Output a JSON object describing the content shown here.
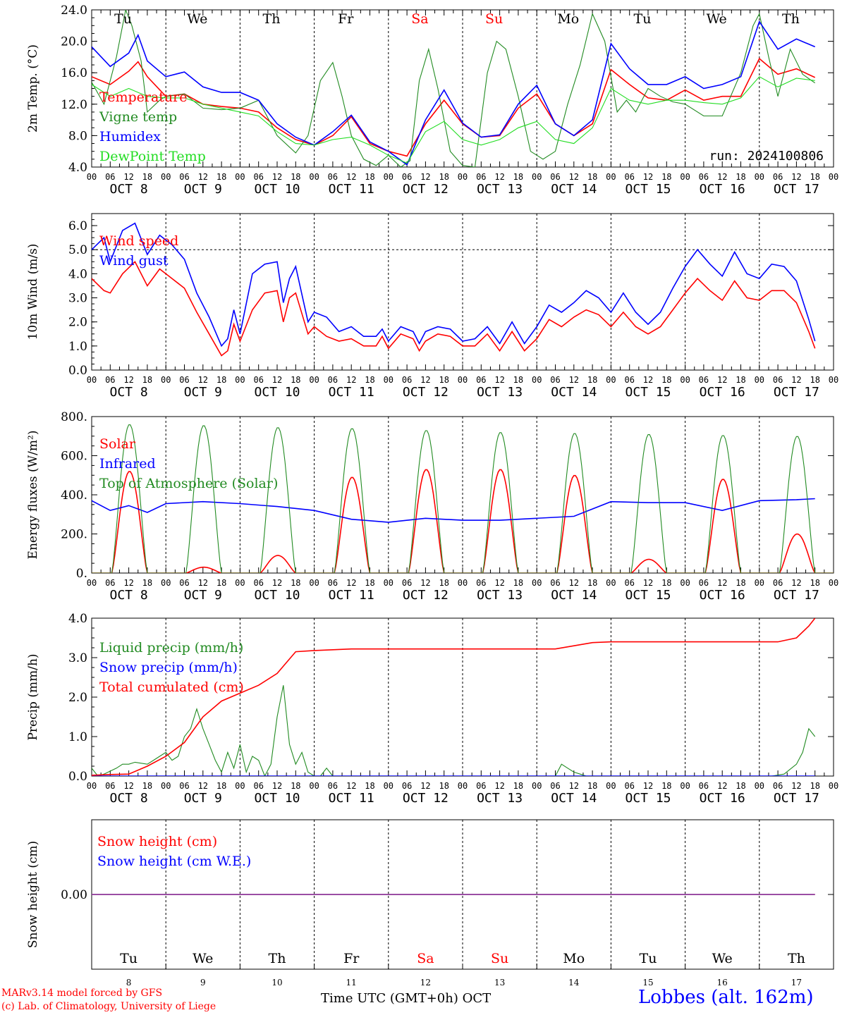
{
  "meta": {
    "run_label": "run: 2024100806",
    "credit_line1": "MARv3.14 model forced by GFS",
    "credit_line2": "(c) Lab. of Climatology, University of Liege",
    "location": "Lobbes (alt. 162m)",
    "time_axis_label": "Time UTC (GMT+0h) OCT"
  },
  "colors": {
    "red": "#ff0000",
    "green": "#228b22",
    "blue": "#0000ff",
    "lime": "#22dd22",
    "purple": "#7a3fb0",
    "axis": "#000000"
  },
  "days": {
    "weekday": [
      "Tu",
      "We",
      "Th",
      "Fr",
      "Sa",
      "Su",
      "Mo",
      "Tu",
      "We",
      "Th"
    ],
    "weekend": [
      false,
      false,
      false,
      false,
      true,
      true,
      false,
      false,
      false,
      false
    ],
    "date": [
      "OCT 8",
      "OCT 9",
      "OCT 10",
      "OCT 11",
      "OCT 12",
      "OCT 13",
      "OCT 14",
      "OCT 15",
      "OCT 16",
      "OCT 17"
    ],
    "daynum": [
      "8",
      "9",
      "10",
      "11",
      "12",
      "13",
      "14",
      "15",
      "16",
      "17"
    ],
    "hours": [
      "00",
      "06",
      "12",
      "18"
    ],
    "end_hour": "00"
  },
  "chart_data": [
    {
      "id": "temperature",
      "type": "line",
      "ylabel": "2m Temp. (°C)",
      "ylim": [
        4,
        24
      ],
      "yticks": [
        "4.0",
        "8.0",
        "12.0",
        "16.0",
        "20.0",
        "24.0"
      ],
      "x_unit": "hours since OCT 8 00 UTC",
      "series": [
        {
          "name": "Temperature",
          "color": "#ff0000",
          "x": [
            0,
            6,
            12,
            15,
            18,
            24,
            30,
            36,
            42,
            48,
            54,
            60,
            66,
            72,
            78,
            84,
            90,
            96,
            102,
            108,
            114,
            120,
            126,
            132,
            138,
            144,
            150,
            156,
            162,
            168,
            174,
            180,
            186,
            192,
            198,
            204,
            210,
            216,
            222,
            228,
            234
          ],
          "y": [
            15.5,
            14.5,
            16.2,
            17.4,
            15.5,
            13.0,
            13.3,
            12.0,
            11.7,
            11.5,
            11.0,
            9.0,
            7.5,
            6.8,
            8.0,
            10.4,
            7.0,
            6.0,
            5.4,
            9.5,
            12.5,
            9.5,
            7.8,
            8.0,
            11.5,
            13.3,
            9.5,
            8.0,
            9.5,
            16.4,
            14.5,
            12.8,
            12.5,
            13.8,
            12.5,
            13.0,
            13.0,
            17.8,
            15.8,
            16.5,
            15.4
          ]
        },
        {
          "name": "Vigne temp",
          "color": "#228b22",
          "x": [
            0,
            4,
            8,
            11,
            13,
            16,
            18,
            22,
            24,
            30,
            36,
            42,
            48,
            54,
            60,
            66,
            70,
            74,
            78,
            81,
            84,
            88,
            92,
            96,
            100,
            103,
            106,
            109,
            112,
            116,
            120,
            124,
            128,
            131,
            134,
            138,
            142,
            146,
            150,
            154,
            158,
            162,
            166,
            170,
            173,
            176,
            180,
            184,
            188,
            192,
            198,
            204,
            210,
            214,
            216,
            219,
            222,
            226,
            230,
            234
          ],
          "y": [
            14.8,
            12.0,
            18.0,
            24.0,
            22.0,
            17.5,
            11.0,
            12.5,
            13.0,
            13.3,
            11.5,
            11.3,
            11.5,
            12.5,
            8.0,
            5.8,
            8.0,
            15.0,
            17.3,
            13.0,
            8.0,
            5.0,
            4.2,
            5.5,
            4.0,
            4.8,
            15.0,
            19.0,
            14.0,
            6.0,
            4.2,
            4.0,
            16.0,
            20.0,
            19.0,
            13.0,
            6.0,
            5.0,
            6.0,
            12.0,
            17.0,
            23.5,
            20.0,
            11.0,
            12.5,
            11.0,
            14.0,
            13.0,
            12.3,
            12.0,
            10.5,
            10.5,
            16.0,
            22.0,
            23.5,
            18.0,
            13.0,
            19.0,
            15.8,
            14.7
          ]
        },
        {
          "name": "Humidex",
          "color": "#0000ff",
          "x": [
            0,
            6,
            12,
            15,
            18,
            24,
            30,
            36,
            42,
            48,
            54,
            60,
            66,
            72,
            78,
            84,
            90,
            96,
            102,
            108,
            114,
            120,
            126,
            132,
            138,
            144,
            150,
            156,
            162,
            168,
            174,
            180,
            186,
            192,
            198,
            204,
            210,
            216,
            222,
            228,
            234
          ],
          "y": [
            19.3,
            16.8,
            18.5,
            20.8,
            17.5,
            15.5,
            16.1,
            14.2,
            13.5,
            13.5,
            12.5,
            9.5,
            7.8,
            6.8,
            8.5,
            10.6,
            7.2,
            6.0,
            4.3,
            10.0,
            13.8,
            9.6,
            7.8,
            8.1,
            12.0,
            14.4,
            9.5,
            8.0,
            10.0,
            19.7,
            16.5,
            14.5,
            14.5,
            15.5,
            14.0,
            14.5,
            15.5,
            22.5,
            19.0,
            20.3,
            19.3
          ]
        },
        {
          "name": "DewPoint Temp",
          "color": "#22dd22",
          "x": [
            0,
            6,
            12,
            18,
            24,
            30,
            36,
            42,
            48,
            54,
            60,
            66,
            72,
            78,
            84,
            90,
            96,
            102,
            108,
            114,
            120,
            126,
            132,
            138,
            144,
            150,
            156,
            162,
            168,
            174,
            180,
            186,
            192,
            198,
            204,
            210,
            216,
            222,
            228,
            234
          ],
          "y": [
            14.5,
            13.0,
            14.0,
            13.0,
            12.8,
            12.8,
            12.0,
            11.5,
            11.0,
            10.5,
            8.5,
            7.0,
            6.8,
            7.5,
            7.8,
            6.8,
            5.5,
            4.5,
            8.5,
            9.8,
            7.5,
            6.8,
            7.5,
            9.0,
            9.8,
            7.5,
            7.0,
            9.0,
            14.0,
            12.5,
            12.0,
            12.5,
            12.5,
            12.2,
            12.0,
            12.8,
            15.5,
            14.2,
            15.3,
            15.0
          ]
        }
      ]
    },
    {
      "id": "wind",
      "type": "line",
      "ylabel": "10m Wind (m/s)",
      "ylim": [
        0,
        6.5
      ],
      "yticks": [
        "0.0",
        "1.0",
        "2.0",
        "3.0",
        "4.0",
        "5.0",
        "6.0"
      ],
      "ref_line": 5.0,
      "series": [
        {
          "name": "Wind speed",
          "color": "#ff0000",
          "x": [
            0,
            4,
            6,
            10,
            14,
            18,
            22,
            26,
            30,
            34,
            38,
            42,
            44,
            46,
            48,
            52,
            56,
            60,
            62,
            64,
            66,
            70,
            72,
            76,
            80,
            84,
            88,
            92,
            94,
            96,
            100,
            104,
            106,
            108,
            112,
            116,
            120,
            124,
            128,
            132,
            136,
            140,
            144,
            148,
            152,
            156,
            160,
            164,
            168,
            172,
            176,
            180,
            184,
            188,
            192,
            196,
            200,
            204,
            208,
            212,
            216,
            220,
            224,
            228,
            232,
            234
          ],
          "y": [
            3.8,
            3.3,
            3.2,
            4.0,
            4.5,
            3.5,
            4.2,
            3.8,
            3.4,
            2.4,
            1.5,
            0.6,
            0.8,
            1.9,
            1.2,
            2.5,
            3.2,
            3.3,
            2.0,
            3.0,
            3.2,
            1.5,
            1.8,
            1.4,
            1.2,
            1.3,
            1.0,
            1.0,
            1.4,
            0.9,
            1.5,
            1.3,
            0.8,
            1.2,
            1.5,
            1.4,
            1.0,
            1.0,
            1.5,
            0.8,
            1.6,
            0.8,
            1.3,
            2.1,
            1.8,
            2.2,
            2.5,
            2.3,
            1.8,
            2.4,
            1.8,
            1.5,
            1.8,
            2.5,
            3.2,
            3.8,
            3.3,
            2.9,
            3.7,
            3.0,
            2.9,
            3.3,
            3.3,
            2.8,
            1.6,
            0.9
          ]
        },
        {
          "name": "Wind gust",
          "color": "#0000ff",
          "x": [
            0,
            4,
            6,
            10,
            14,
            18,
            22,
            26,
            30,
            34,
            38,
            42,
            44,
            46,
            48,
            52,
            56,
            60,
            62,
            64,
            66,
            70,
            72,
            76,
            80,
            84,
            88,
            92,
            94,
            96,
            100,
            104,
            106,
            108,
            112,
            116,
            120,
            124,
            128,
            132,
            136,
            140,
            144,
            148,
            152,
            156,
            160,
            164,
            168,
            172,
            176,
            180,
            184,
            188,
            192,
            196,
            200,
            204,
            208,
            212,
            216,
            220,
            224,
            228,
            232,
            234
          ],
          "y": [
            5.0,
            5.5,
            4.5,
            5.8,
            6.1,
            4.8,
            5.6,
            5.2,
            4.6,
            3.2,
            2.2,
            1.0,
            1.3,
            2.5,
            1.5,
            4.0,
            4.4,
            4.5,
            2.8,
            3.8,
            4.3,
            2.0,
            2.4,
            2.2,
            1.6,
            1.8,
            1.4,
            1.4,
            1.7,
            1.2,
            1.8,
            1.6,
            1.1,
            1.6,
            1.8,
            1.7,
            1.2,
            1.3,
            1.8,
            1.1,
            2.0,
            1.1,
            1.8,
            2.7,
            2.4,
            2.8,
            3.3,
            3.0,
            2.4,
            3.2,
            2.4,
            1.9,
            2.4,
            3.4,
            4.3,
            5.0,
            4.4,
            3.9,
            4.9,
            4.0,
            3.8,
            4.4,
            4.3,
            3.7,
            2.1,
            1.2
          ]
        }
      ]
    },
    {
      "id": "energy",
      "type": "line",
      "ylabel": "Energy fluxes (W/m²)",
      "ylim": [
        0,
        800
      ],
      "yticks": [
        "0.",
        "200.",
        "400.",
        "600.",
        "800."
      ],
      "series": [
        {
          "name": "Solar",
          "color": "#ff0000",
          "peaks": [
            520,
            30,
            90,
            490,
            530,
            530,
            500,
            70,
            480,
            200
          ]
        },
        {
          "name": "Infrared",
          "color": "#0000ff",
          "x": [
            0,
            6,
            12,
            18,
            24,
            36,
            48,
            60,
            72,
            84,
            96,
            108,
            120,
            132,
            144,
            156,
            168,
            180,
            192,
            204,
            216,
            228,
            234
          ],
          "y": [
            370,
            320,
            345,
            310,
            355,
            365,
            355,
            340,
            320,
            275,
            260,
            280,
            270,
            270,
            280,
            290,
            365,
            360,
            360,
            320,
            370,
            375,
            380
          ]
        },
        {
          "name": "Top of Atmosphere (Solar)",
          "color": "#228b22",
          "peaks": [
            760,
            755,
            745,
            740,
            730,
            720,
            715,
            710,
            705,
            700
          ]
        }
      ]
    },
    {
      "id": "precip",
      "type": "line",
      "ylabel": "Precip (mm/h)",
      "ylim": [
        0,
        4
      ],
      "yticks": [
        "0.0",
        "1.0",
        "2.0",
        "3.0",
        "4.0"
      ],
      "series": [
        {
          "name": "Liquid precip (mm/h)",
          "color": "#228b22",
          "x": [
            0,
            2,
            4,
            8,
            10,
            12,
            14,
            18,
            20,
            22,
            24,
            26,
            28,
            30,
            32,
            34,
            36,
            38,
            40,
            42,
            44,
            46,
            48,
            50,
            52,
            54,
            56,
            58,
            60,
            62,
            64,
            66,
            68,
            70,
            72,
            74,
            76,
            78,
            80,
            84,
            88,
            150,
            152,
            154,
            156,
            158,
            160,
            162,
            220,
            224,
            228,
            230,
            232,
            234
          ],
          "y": [
            0.2,
            0.0,
            0.05,
            0.2,
            0.3,
            0.3,
            0.35,
            0.3,
            0.4,
            0.5,
            0.6,
            0.4,
            0.5,
            1.0,
            1.2,
            1.7,
            1.2,
            0.8,
            0.4,
            0.1,
            0.6,
            0.2,
            0.8,
            0.1,
            0.5,
            0.4,
            0.0,
            0.3,
            1.5,
            2.3,
            0.8,
            0.3,
            0.6,
            0.1,
            0.0,
            0.0,
            0.2,
            0.0,
            0.0,
            0.0,
            0.0,
            0.0,
            0.3,
            0.2,
            0.1,
            0.05,
            0.0,
            0.0,
            0.0,
            0.05,
            0.3,
            0.6,
            1.2,
            1.0
          ]
        },
        {
          "name": "Snow precip (mm/h)",
          "color": "#0000ff",
          "x": [
            0,
            234
          ],
          "y": [
            0,
            0
          ]
        },
        {
          "name": "Total cumulated (cm)",
          "color": "#ff0000",
          "x": [
            0,
            6,
            12,
            18,
            24,
            30,
            36,
            42,
            48,
            54,
            60,
            66,
            72,
            78,
            84,
            90,
            150,
            156,
            162,
            168,
            174,
            210,
            222,
            228,
            232,
            234
          ],
          "y": [
            0.02,
            0.04,
            0.05,
            0.25,
            0.5,
            0.85,
            1.5,
            1.9,
            2.1,
            2.3,
            2.6,
            3.15,
            3.18,
            3.2,
            3.22,
            3.22,
            3.22,
            3.3,
            3.38,
            3.4,
            3.4,
            3.4,
            3.4,
            3.5,
            3.8,
            4.0
          ]
        }
      ]
    },
    {
      "id": "snow",
      "type": "line",
      "ylabel": "Snow height (cm)",
      "ylim": [
        -1,
        1
      ],
      "yticks": [
        "0.00"
      ],
      "series": [
        {
          "name": "Snow height (cm)",
          "color": "#ff0000",
          "x": [
            0,
            234
          ],
          "y": [
            0,
            0
          ]
        },
        {
          "name": "Snow height (cm W.E.)",
          "color": "#0000ff",
          "x": [
            0,
            234
          ],
          "y": [
            0,
            0
          ]
        }
      ]
    }
  ]
}
